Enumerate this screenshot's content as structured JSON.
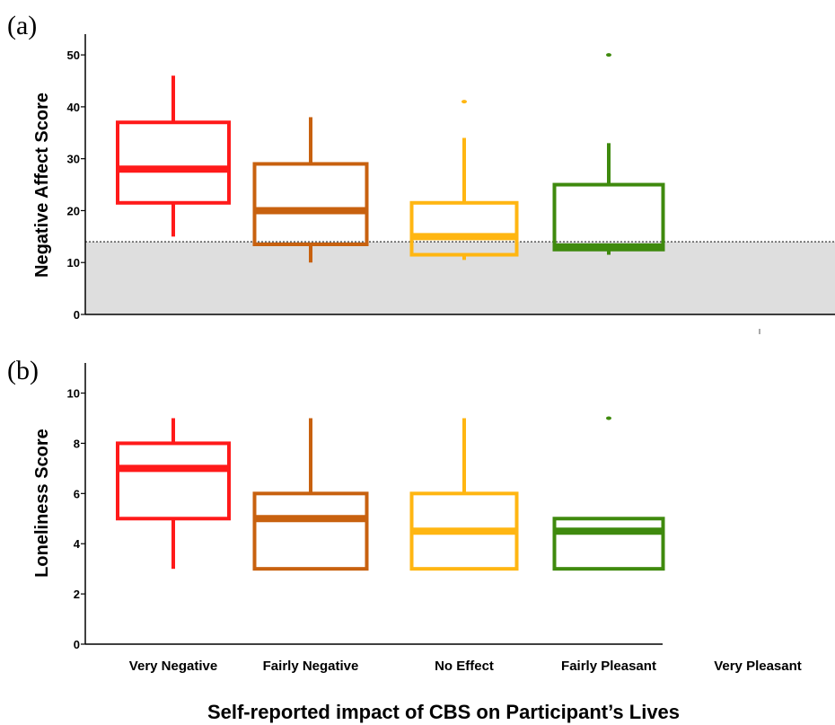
{
  "figure": {
    "xlabel": "Self-reported impact of CBS on Participant’s Lives",
    "categories": [
      "Very Negative",
      "Fairly Negative",
      "No Effect",
      "Fairly Pleasant",
      "Very Pleasant"
    ],
    "colors": [
      "#ff1a1a",
      "#c8610f",
      "#ffb612",
      "#3f8a0e"
    ]
  },
  "chart_data": [
    {
      "type": "box",
      "panel_label": "(a)",
      "ylabel": "Negative Affect Score",
      "ylim": [
        0,
        54
      ],
      "yticks": [
        0,
        10,
        20,
        30,
        40,
        50
      ],
      "categories": [
        "Very Negative",
        "Fairly Negative",
        "No Effect",
        "Fairly Pleasant",
        "Very Pleasant"
      ],
      "boxes": [
        {
          "category": "Very Negative",
          "whisker_low": 15,
          "q1": 21.5,
          "median": 28,
          "q3": 37,
          "whisker_high": 46,
          "outliers": []
        },
        {
          "category": "Fairly Negative",
          "whisker_low": 10,
          "q1": 13.5,
          "median": 20,
          "q3": 29,
          "whisker_high": 38,
          "outliers": []
        },
        {
          "category": "No Effect",
          "whisker_low": 10.5,
          "q1": 11.5,
          "median": 15,
          "q3": 21.5,
          "whisker_high": 34,
          "outliers": [
            41
          ]
        },
        {
          "category": "Fairly Pleasant",
          "whisker_low": 11.5,
          "q1": 12.5,
          "median": 13,
          "q3": 25,
          "whisker_high": 33,
          "outliers": [
            50
          ]
        }
      ],
      "threshold": {
        "value": 14,
        "style": "dotted",
        "shaded_below": true
      }
    },
    {
      "type": "box",
      "panel_label": "(b)",
      "ylabel": "Loneliness Score",
      "ylim": [
        0,
        11.2
      ],
      "yticks": [
        0,
        2,
        4,
        6,
        8,
        10
      ],
      "categories": [
        "Very Negative",
        "Fairly Negative",
        "No Effect",
        "Fairly Pleasant",
        "Very Pleasant"
      ],
      "boxes": [
        {
          "category": "Very Negative",
          "whisker_low": 3,
          "q1": 5,
          "median": 7,
          "q3": 8,
          "whisker_high": 9,
          "outliers": []
        },
        {
          "category": "Fairly Negative",
          "whisker_low": 3,
          "q1": 3,
          "median": 5,
          "q3": 6,
          "whisker_high": 9,
          "outliers": []
        },
        {
          "category": "No Effect",
          "whisker_low": 3,
          "q1": 3,
          "median": 4.5,
          "q3": 6,
          "whisker_high": 9,
          "outliers": []
        },
        {
          "category": "Fairly Pleasant",
          "whisker_low": 3,
          "q1": 3,
          "median": 4.5,
          "q3": 5,
          "whisker_high": 5,
          "outliers": [
            9
          ]
        }
      ]
    }
  ]
}
